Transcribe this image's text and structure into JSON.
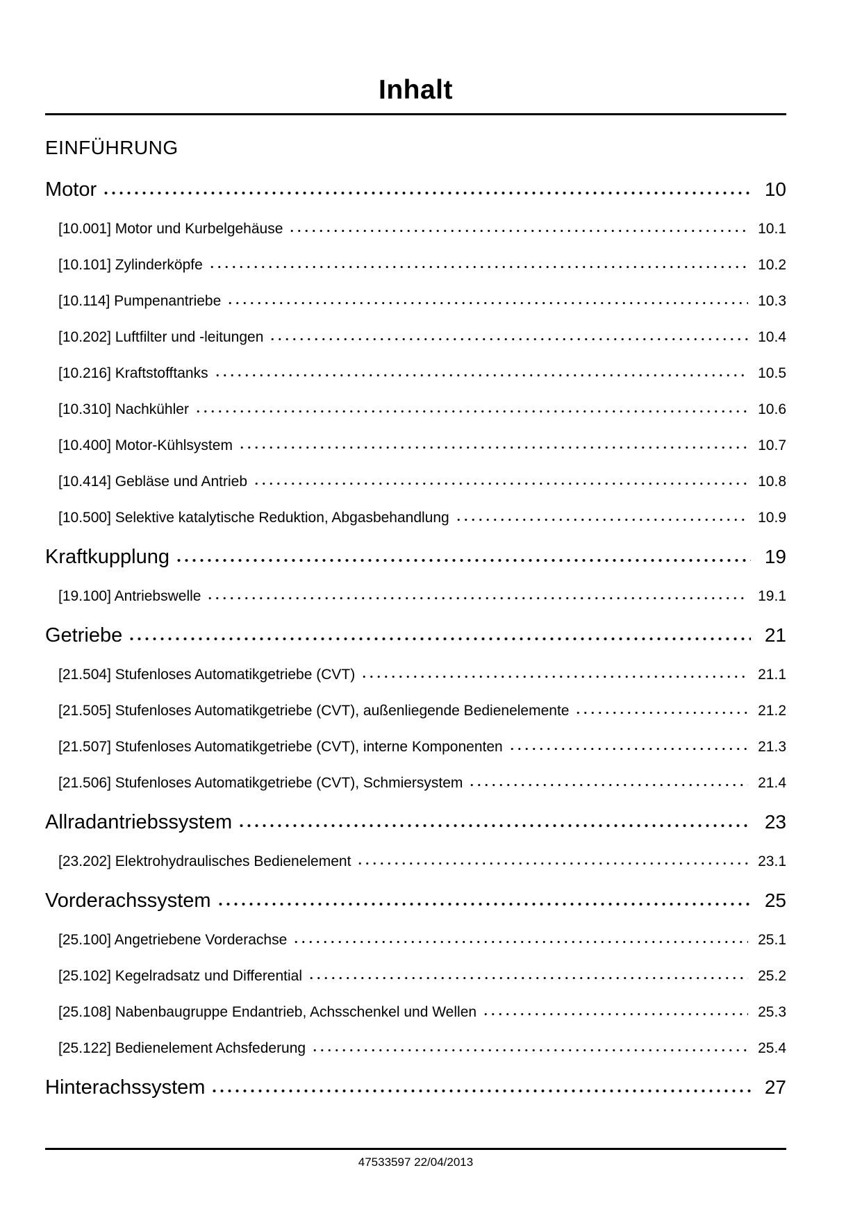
{
  "page": {
    "title": "Inhalt",
    "footer": "47533597 22/04/2013"
  },
  "toc": {
    "intro_heading": "EINFÜHRUNG",
    "sections": [
      {
        "label": "Motor",
        "page": "10",
        "entries": [
          {
            "label": "[10.001] Motor und Kurbelgehäuse",
            "page": "10.1"
          },
          {
            "label": "[10.101] Zylinderköpfe",
            "page": "10.2"
          },
          {
            "label": "[10.114] Pumpenantriebe",
            "page": "10.3"
          },
          {
            "label": "[10.202] Luftfilter und -leitungen",
            "page": "10.4"
          },
          {
            "label": "[10.216] Kraftstofftanks",
            "page": "10.5"
          },
          {
            "label": "[10.310] Nachkühler",
            "page": "10.6"
          },
          {
            "label": "[10.400] Motor-Kühlsystem",
            "page": "10.7"
          },
          {
            "label": "[10.414] Gebläse und Antrieb",
            "page": "10.8"
          },
          {
            "label": "[10.500] Selektive katalytische Reduktion, Abgasbehandlung",
            "page": "10.9"
          }
        ]
      },
      {
        "label": "Kraftkupplung",
        "page": "19",
        "entries": [
          {
            "label": "[19.100] Antriebswelle",
            "page": "19.1"
          }
        ]
      },
      {
        "label": "Getriebe",
        "page": "21",
        "entries": [
          {
            "label": "[21.504] Stufenloses Automatikgetriebe (CVT)",
            "page": "21.1"
          },
          {
            "label": "[21.505] Stufenloses Automatikgetriebe (CVT), außenliegende Bedienelemente",
            "page": "21.2"
          },
          {
            "label": "[21.507] Stufenloses Automatikgetriebe (CVT), interne Komponenten",
            "page": "21.3"
          },
          {
            "label": "[21.506] Stufenloses Automatikgetriebe (CVT), Schmiersystem",
            "page": "21.4"
          }
        ]
      },
      {
        "label": "Allradantriebssystem",
        "page": "23",
        "entries": [
          {
            "label": "[23.202] Elektrohydraulisches Bedienelement",
            "page": "23.1"
          }
        ]
      },
      {
        "label": "Vorderachssystem",
        "page": "25",
        "entries": [
          {
            "label": "[25.100] Angetriebene Vorderachse",
            "page": "25.1"
          },
          {
            "label": "[25.102] Kegelradsatz und Differential",
            "page": "25.2"
          },
          {
            "label": "[25.108] Nabenbaugruppe Endantrieb, Achsschenkel und Wellen",
            "page": "25.3"
          },
          {
            "label": "[25.122] Bedienelement Achsfederung",
            "page": "25.4"
          }
        ]
      },
      {
        "label": "Hinterachssystem",
        "page": "27",
        "entries": []
      }
    ]
  }
}
